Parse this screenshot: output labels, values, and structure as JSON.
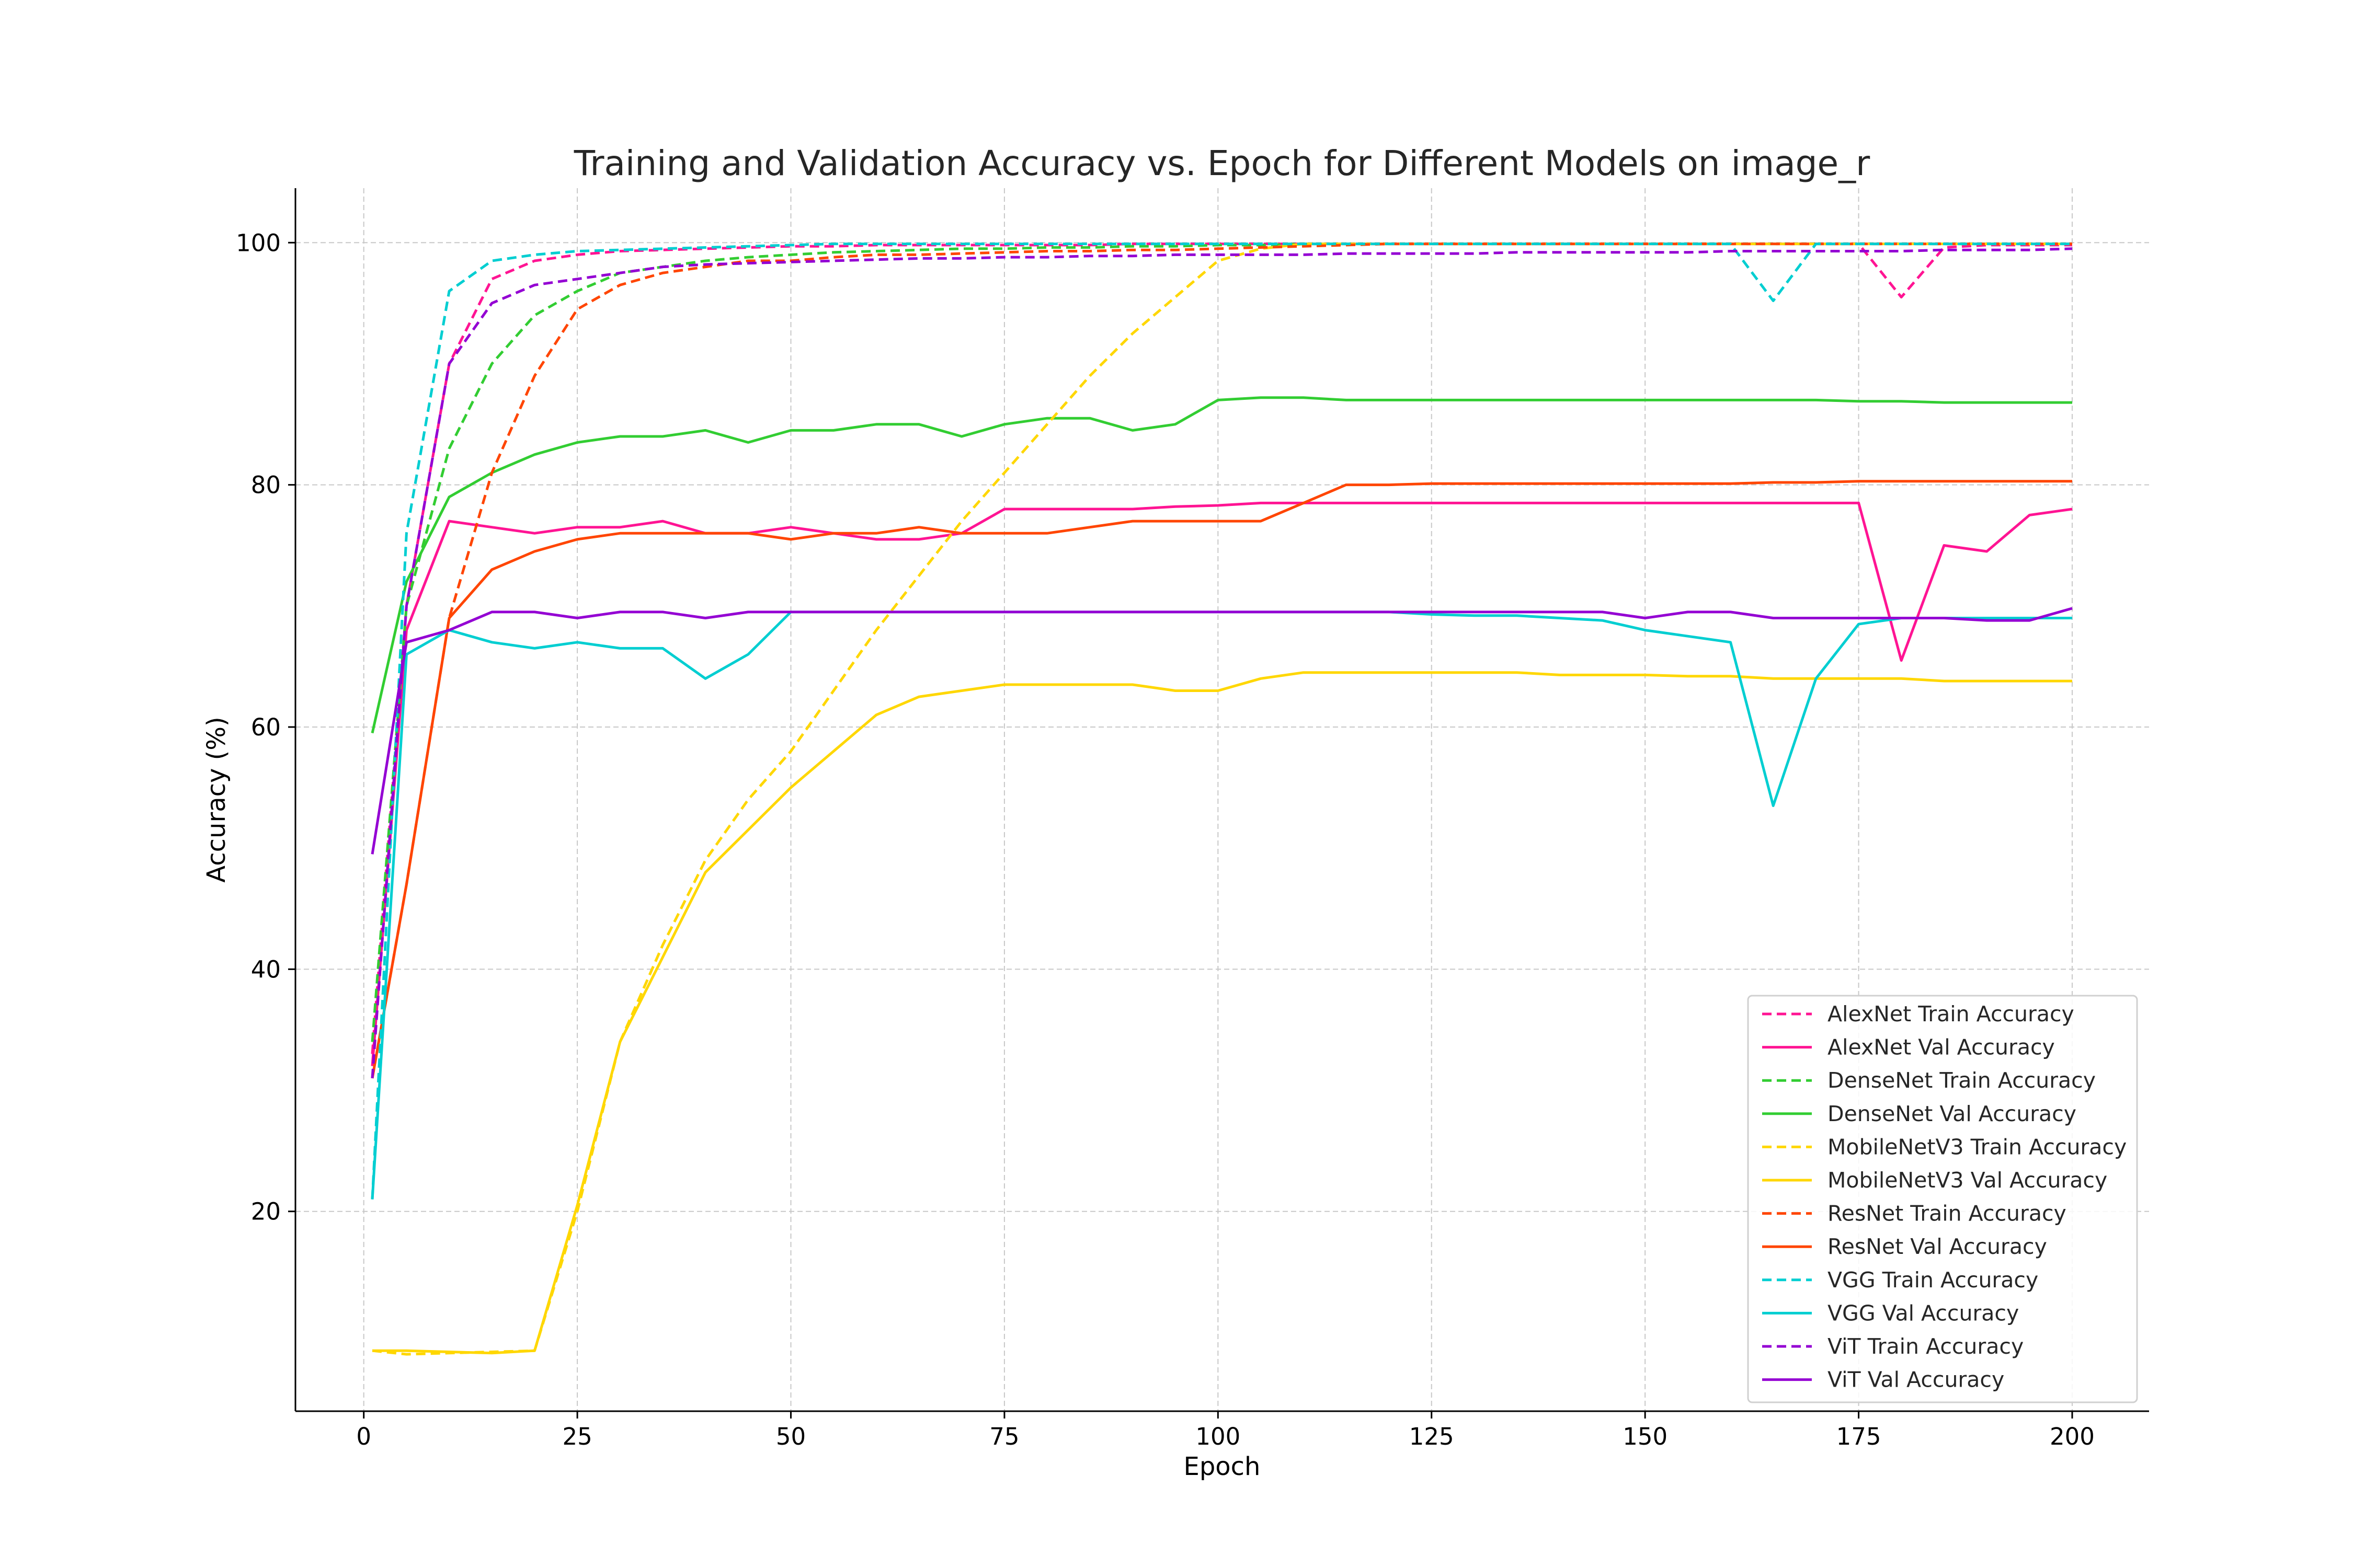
{
  "chart_data": {
    "type": "line",
    "title": "Training and Validation Accuracy vs. Epoch for Different Models on image_r",
    "xlabel": "Epoch",
    "ylabel": "Accuracy (%)",
    "xlim": [
      -8,
      209
    ],
    "ylim": [
      3.5,
      104.5
    ],
    "xticks": [
      0,
      25,
      50,
      75,
      100,
      125,
      150,
      175,
      200
    ],
    "yticks": [
      20,
      40,
      60,
      80,
      100
    ],
    "grid": true,
    "legend_position": "lower-right",
    "x": [
      1,
      5,
      10,
      15,
      20,
      25,
      30,
      35,
      40,
      45,
      50,
      55,
      60,
      65,
      70,
      75,
      80,
      85,
      90,
      95,
      100,
      105,
      110,
      115,
      120,
      125,
      130,
      135,
      140,
      145,
      150,
      155,
      160,
      165,
      170,
      175,
      180,
      185,
      190,
      195,
      200
    ],
    "series": [
      {
        "name": "AlexNet Train Accuracy",
        "color": "#ff1493",
        "dash": true,
        "values": [
          33,
          70,
          90,
          97,
          98.5,
          99,
          99.3,
          99.4,
          99.5,
          99.6,
          99.7,
          99.7,
          99.8,
          99.8,
          99.8,
          99.8,
          99.8,
          99.8,
          99.9,
          99.9,
          99.9,
          99.9,
          99.9,
          99.9,
          99.9,
          99.9,
          99.9,
          99.9,
          99.9,
          99.9,
          99.9,
          99.9,
          99.9,
          99.9,
          99.9,
          99.9,
          95.5,
          99.6,
          99.8,
          99.8,
          99.8
        ]
      },
      {
        "name": "AlexNet Val Accuracy",
        "color": "#ff1493",
        "dash": false,
        "values": [
          32,
          68,
          77,
          76.5,
          76,
          76.5,
          76.5,
          77,
          76,
          76,
          76.5,
          76,
          75.5,
          75.5,
          76,
          78,
          78,
          78,
          78,
          78.2,
          78.3,
          78.5,
          78.5,
          78.5,
          78.5,
          78.5,
          78.5,
          78.5,
          78.5,
          78.5,
          78.5,
          78.5,
          78.5,
          78.5,
          78.5,
          78.5,
          65.5,
          75,
          74.5,
          77.5,
          78
        ]
      },
      {
        "name": "DenseNet Train Accuracy",
        "color": "#32cd32",
        "dash": true,
        "values": [
          34,
          70,
          83,
          90,
          94,
          96,
          97.5,
          98,
          98.5,
          98.8,
          99,
          99.2,
          99.3,
          99.4,
          99.5,
          99.5,
          99.6,
          99.6,
          99.7,
          99.7,
          99.8,
          99.8,
          99.9,
          99.9,
          99.9,
          99.9,
          99.9,
          99.9,
          99.9,
          99.9,
          99.9,
          99.9,
          99.9,
          99.9,
          99.9,
          99.9,
          99.9,
          99.9,
          99.9,
          99.9,
          99.9
        ]
      },
      {
        "name": "DenseNet Val Accuracy",
        "color": "#32cd32",
        "dash": false,
        "values": [
          59.5,
          72,
          79,
          81,
          82.5,
          83.5,
          84,
          84,
          84.5,
          83.5,
          84.5,
          84.5,
          85,
          85,
          84,
          85,
          85.5,
          85.5,
          84.5,
          85,
          87,
          87.2,
          87.2,
          87,
          87,
          87,
          87,
          87,
          87,
          87,
          87,
          87,
          87,
          87,
          87,
          86.9,
          86.9,
          86.8,
          86.8,
          86.8,
          86.8
        ]
      },
      {
        "name": "MobileNetV3 Train Accuracy",
        "color": "#ffd700",
        "dash": true,
        "values": [
          8.5,
          8.2,
          8.3,
          8.4,
          8.5,
          20,
          34,
          42,
          49,
          54,
          58,
          63,
          68,
          72.5,
          77,
          81,
          85,
          89,
          92.5,
          95.5,
          98.5,
          99.5,
          99.9,
          99.9,
          99.9,
          99.9,
          99.9,
          99.9,
          99.9,
          99.9,
          99.9,
          99.9,
          99.9,
          99.9,
          99.9,
          99.9,
          99.9,
          99.9,
          99.9,
          99.9,
          99.9
        ]
      },
      {
        "name": "MobileNetV3 Val Accuracy",
        "color": "#ffd700",
        "dash": false,
        "values": [
          8.5,
          8.5,
          8.4,
          8.3,
          8.5,
          20.5,
          34,
          41,
          48,
          51.5,
          55,
          58,
          61,
          62.5,
          63,
          63.5,
          63.5,
          63.5,
          63.5,
          63,
          63,
          64,
          64.5,
          64.5,
          64.5,
          64.5,
          64.5,
          64.5,
          64.3,
          64.3,
          64.3,
          64.2,
          64.2,
          64,
          64,
          64,
          64,
          63.8,
          63.8,
          63.8,
          63.8
        ]
      },
      {
        "name": "ResNet Train Accuracy",
        "color": "#ff4500",
        "dash": true,
        "values": [
          31,
          47,
          69,
          81,
          89,
          94.5,
          96.5,
          97.5,
          98,
          98.5,
          98.5,
          98.8,
          99,
          99,
          99.1,
          99.2,
          99.3,
          99.3,
          99.4,
          99.4,
          99.5,
          99.6,
          99.7,
          99.8,
          99.9,
          99.9,
          99.9,
          99.9,
          99.9,
          99.9,
          99.9,
          99.9,
          99.9,
          99.9,
          99.9,
          99.9,
          99.9,
          99.9,
          99.9,
          99.9,
          99.9
        ]
      },
      {
        "name": "ResNet Val Accuracy",
        "color": "#ff4500",
        "dash": false,
        "values": [
          31,
          47,
          69,
          73,
          74.5,
          75.5,
          76,
          76,
          76,
          76,
          75.5,
          76,
          76,
          76.5,
          76,
          76,
          76,
          76.5,
          77,
          77,
          77,
          77,
          78.5,
          80,
          80,
          80.1,
          80.1,
          80.1,
          80.1,
          80.1,
          80.1,
          80.1,
          80.1,
          80.2,
          80.2,
          80.3,
          80.3,
          80.3,
          80.3,
          80.3,
          80.3
        ]
      },
      {
        "name": "VGG Train Accuracy",
        "color": "#00ced1",
        "dash": true,
        "values": [
          21,
          76,
          96,
          98.5,
          99,
          99.3,
          99.4,
          99.5,
          99.6,
          99.7,
          99.8,
          99.9,
          99.9,
          99.9,
          99.9,
          99.9,
          99.9,
          99.9,
          99.9,
          99.9,
          99.9,
          99.9,
          99.9,
          99.9,
          99.9,
          99.9,
          99.9,
          99.9,
          99.9,
          99.9,
          99.9,
          99.9,
          99.9,
          95.2,
          99.9,
          99.9,
          99.9,
          99.9,
          99.9,
          99.9,
          99.9
        ]
      },
      {
        "name": "VGG Val Accuracy",
        "color": "#00ced1",
        "dash": false,
        "values": [
          21,
          66,
          68,
          67,
          66.5,
          67,
          66.5,
          66.5,
          64,
          66,
          69.5,
          69.5,
          69.5,
          69.5,
          69.5,
          69.5,
          69.5,
          69.5,
          69.5,
          69.5,
          69.5,
          69.5,
          69.5,
          69.5,
          69.5,
          69.3,
          69.2,
          69.2,
          69,
          68.8,
          68,
          67.5,
          67,
          53.5,
          64,
          68.5,
          69,
          69,
          69,
          69,
          69
        ]
      },
      {
        "name": "ViT Train Accuracy",
        "color": "#9400d3",
        "dash": true,
        "values": [
          31,
          70,
          90,
          95,
          96.5,
          97,
          97.5,
          98,
          98.2,
          98.3,
          98.4,
          98.5,
          98.6,
          98.7,
          98.7,
          98.8,
          98.8,
          98.9,
          98.9,
          99,
          99,
          99,
          99,
          99.1,
          99.1,
          99.1,
          99.1,
          99.2,
          99.2,
          99.2,
          99.2,
          99.2,
          99.3,
          99.3,
          99.3,
          99.3,
          99.3,
          99.4,
          99.4,
          99.4,
          99.5
        ]
      },
      {
        "name": "ViT Val Accuracy",
        "color": "#9400d3",
        "dash": false,
        "values": [
          49.5,
          67,
          68,
          69.5,
          69.5,
          69,
          69.5,
          69.5,
          69,
          69.5,
          69.5,
          69.5,
          69.5,
          69.5,
          69.5,
          69.5,
          69.5,
          69.5,
          69.5,
          69.5,
          69.5,
          69.5,
          69.5,
          69.5,
          69.5,
          69.5,
          69.5,
          69.5,
          69.5,
          69.5,
          69,
          69.5,
          69.5,
          69,
          69,
          69,
          69,
          69,
          68.8,
          68.8,
          69.8
        ]
      }
    ]
  }
}
